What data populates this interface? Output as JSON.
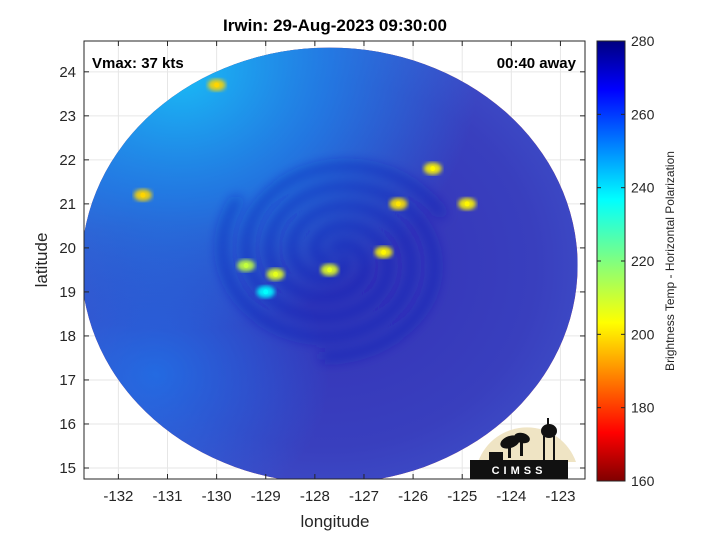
{
  "chart_data": {
    "type": "heatmap",
    "title": "Irwin: 29-Aug-2023 09:30:00",
    "annotations": {
      "vmax": "Vmax: 37 kts",
      "time_away": "00:40 away"
    },
    "xlabel": "longitude",
    "ylabel": "latitude",
    "xlim": [
      -132.7,
      -122.5
    ],
    "ylim": [
      14.75,
      24.7
    ],
    "xticks": [
      -132,
      -131,
      -130,
      -129,
      -128,
      -127,
      -126,
      -125,
      -124,
      -123
    ],
    "yticks": [
      15,
      16,
      17,
      18,
      19,
      20,
      21,
      22,
      23,
      24
    ],
    "grid": true,
    "colorbar": {
      "label": "Brightness Temp - Horizontal Polarization",
      "range": [
        160,
        280
      ],
      "ticks": [
        160,
        180,
        200,
        220,
        240,
        260,
        280
      ],
      "colormap": "jet"
    },
    "swath": {
      "center_lon": -127.7,
      "center_lat": 19.6,
      "radius_lon": 5.05,
      "radius_lat": 4.95
    },
    "background_tb": 258,
    "storm_center": {
      "lon": -127.6,
      "lat": 19.8
    },
    "features": [
      {
        "lon": -129.4,
        "lat": 19.6,
        "tb": 228
      },
      {
        "lon": -129.0,
        "lat": 19.0,
        "tb": 205
      },
      {
        "lon": -128.8,
        "lat": 19.4,
        "tb": 232
      },
      {
        "lon": -127.7,
        "lat": 19.5,
        "tb": 232
      },
      {
        "lon": -126.6,
        "lat": 19.9,
        "tb": 236
      },
      {
        "lon": -126.3,
        "lat": 21.0,
        "tb": 238
      },
      {
        "lon": -125.6,
        "lat": 21.8,
        "tb": 236
      },
      {
        "lon": -124.9,
        "lat": 21.0,
        "tb": 236
      },
      {
        "lon": -130.0,
        "lat": 23.7,
        "tb": 240
      },
      {
        "lon": -131.5,
        "lat": 21.2,
        "tb": 240
      }
    ]
  },
  "logo": {
    "text": "CIMSS"
  }
}
